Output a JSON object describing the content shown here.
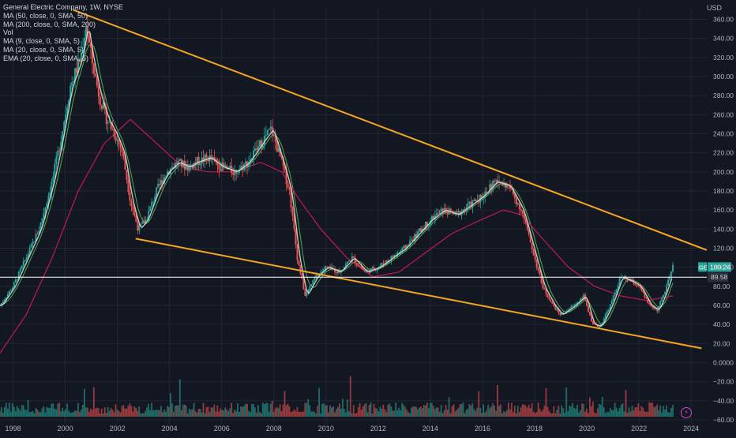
{
  "header": {
    "title": "General Electric Company, 1W, NYSE",
    "currency": "USD"
  },
  "indicators": [
    "MA (50, close, 0, SMA, 50)",
    "MA (200, close, 0, SMA, 200)",
    "Vol",
    "MA (9, close, 0, SMA, 5)",
    "MA (20, close, 0, SMA, 5)",
    "EMA (20, close, 0, SMA, 5)"
  ],
  "colors": {
    "background": "#131722",
    "grid": "#232734",
    "trendline": "#f5a623",
    "up": "#26a69a",
    "down": "#ef5350",
    "ma50": "#4caf50",
    "ma200": "#c2185b",
    "ema20": "#e0e0e0",
    "price_line": "#ffffff",
    "ticker_badge": "#26a69a"
  },
  "chart_data": {
    "type": "candlestick-line",
    "x_ticks": [
      "1998",
      "2000",
      "2002",
      "2004",
      "2006",
      "2008",
      "2010",
      "2012",
      "2014",
      "2016",
      "2018",
      "2020",
      "2022",
      "2024"
    ],
    "y_ticks": [
      360,
      340,
      320,
      300,
      280,
      260,
      240,
      220,
      200,
      180,
      160,
      140,
      120,
      100,
      80,
      60,
      40,
      20,
      0,
      -20,
      -40,
      -60
    ],
    "y_tick_labels": [
      "360.00",
      "340.00",
      "320.00",
      "300.00",
      "280.00",
      "260.00",
      "240.00",
      "220.00",
      "200.00",
      "180.00",
      "160.00",
      "140.00",
      "120.00",
      "100.00",
      "80.00",
      "60.00",
      "40.00",
      "20.00",
      "0.0000",
      "−20.00",
      "−40.00",
      "−60.00"
    ],
    "ylim": [
      -65,
      372
    ],
    "xlim": [
      1997.5,
      2024.6
    ],
    "price_series": [
      [
        1997.5,
        60
      ],
      [
        1998.0,
        80
      ],
      [
        1998.5,
        110
      ],
      [
        1999.0,
        140
      ],
      [
        1999.5,
        190
      ],
      [
        1999.8,
        230
      ],
      [
        2000.2,
        290
      ],
      [
        2000.6,
        320
      ],
      [
        2000.8,
        355
      ],
      [
        2001.0,
        320
      ],
      [
        2001.3,
        280
      ],
      [
        2001.6,
        255
      ],
      [
        2001.9,
        240
      ],
      [
        2002.2,
        220
      ],
      [
        2002.5,
        170
      ],
      [
        2002.8,
        140
      ],
      [
        2003.1,
        150
      ],
      [
        2003.5,
        180
      ],
      [
        2003.9,
        200
      ],
      [
        2004.3,
        210
      ],
      [
        2004.7,
        205
      ],
      [
        2005.0,
        210
      ],
      [
        2005.5,
        215
      ],
      [
        2006.0,
        205
      ],
      [
        2006.5,
        200
      ],
      [
        2007.0,
        210
      ],
      [
        2007.5,
        230
      ],
      [
        2007.9,
        245
      ],
      [
        2008.3,
        210
      ],
      [
        2008.6,
        180
      ],
      [
        2008.9,
        110
      ],
      [
        2009.2,
        70
      ],
      [
        2009.6,
        90
      ],
      [
        2010.0,
        100
      ],
      [
        2010.5,
        95
      ],
      [
        2011.0,
        110
      ],
      [
        2011.5,
        95
      ],
      [
        2012.0,
        100
      ],
      [
        2012.5,
        110
      ],
      [
        2013.0,
        120
      ],
      [
        2013.5,
        135
      ],
      [
        2014.0,
        150
      ],
      [
        2014.5,
        160
      ],
      [
        2015.0,
        155
      ],
      [
        2015.5,
        165
      ],
      [
        2016.0,
        175
      ],
      [
        2016.5,
        190
      ],
      [
        2017.0,
        185
      ],
      [
        2017.5,
        160
      ],
      [
        2017.9,
        120
      ],
      [
        2018.3,
        80
      ],
      [
        2018.7,
        60
      ],
      [
        2019.0,
        50
      ],
      [
        2019.5,
        60
      ],
      [
        2019.9,
        70
      ],
      [
        2020.2,
        40
      ],
      [
        2020.5,
        38
      ],
      [
        2020.9,
        60
      ],
      [
        2021.3,
        90
      ],
      [
        2021.7,
        85
      ],
      [
        2022.0,
        80
      ],
      [
        2022.4,
        60
      ],
      [
        2022.7,
        55
      ],
      [
        2023.0,
        75
      ],
      [
        2023.3,
        100.24
      ]
    ],
    "ma200_series": [
      [
        1997.5,
        10
      ],
      [
        1998.5,
        50
      ],
      [
        1999.5,
        110
      ],
      [
        2000.5,
        180
      ],
      [
        2001.5,
        230
      ],
      [
        2002.5,
        255
      ],
      [
        2003.5,
        230
      ],
      [
        2004.5,
        205
      ],
      [
        2005.5,
        200
      ],
      [
        2006.5,
        200
      ],
      [
        2007.5,
        210
      ],
      [
        2008.3,
        200
      ],
      [
        2009.0,
        170
      ],
      [
        2009.8,
        140
      ],
      [
        2010.8,
        110
      ],
      [
        2011.8,
        90
      ],
      [
        2012.8,
        95
      ],
      [
        2013.8,
        115
      ],
      [
        2014.8,
        135
      ],
      [
        2015.8,
        148
      ],
      [
        2016.8,
        160
      ],
      [
        2017.5,
        155
      ],
      [
        2018.3,
        130
      ],
      [
        2019.3,
        100
      ],
      [
        2020.3,
        80
      ],
      [
        2021.3,
        70
      ],
      [
        2022.3,
        65
      ],
      [
        2023.3,
        70
      ]
    ],
    "trendlines": [
      {
        "x1": 2000.3,
        "y1": 370,
        "x2": 2024.6,
        "y2": 118
      },
      {
        "x1": 2002.7,
        "y1": 130,
        "x2": 2024.4,
        "y2": 15
      }
    ],
    "last_price": {
      "symbol": "GE",
      "value": "100.24"
    },
    "marker_price": {
      "value": "89.58"
    }
  }
}
